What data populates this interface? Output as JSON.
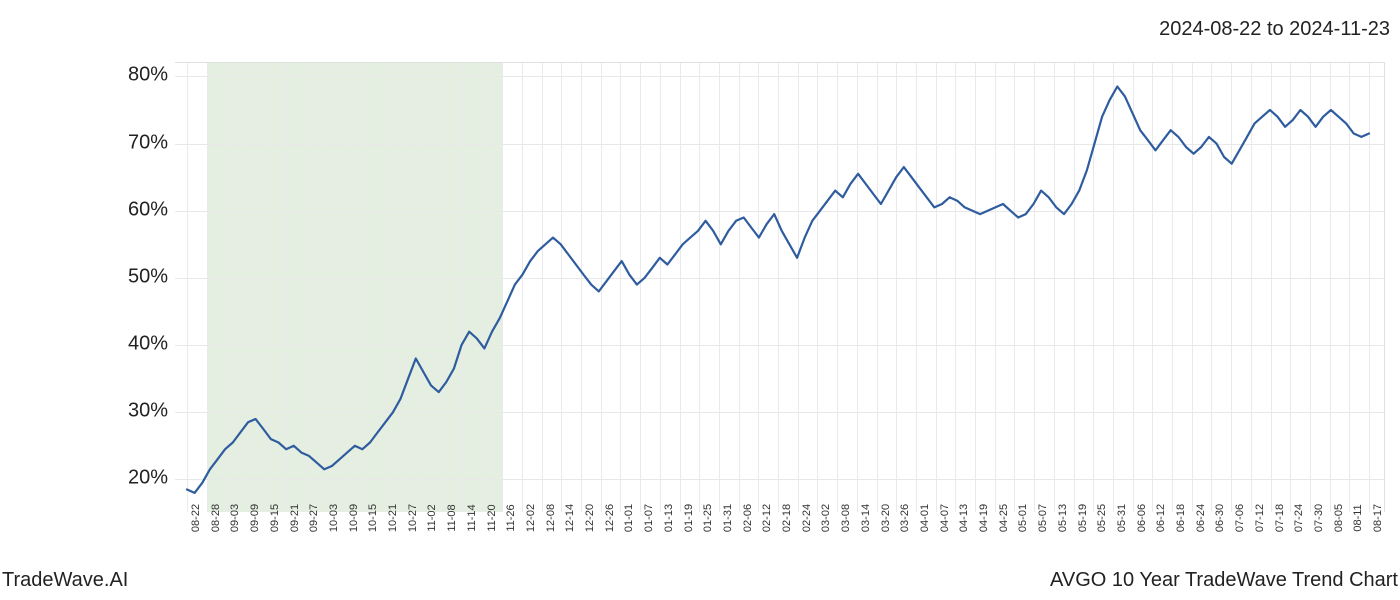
{
  "date_range_label": "2024-08-22 to 2024-11-23",
  "footer_left": "TradeWave.AI",
  "footer_right": "AVGO 10 Year TradeWave Trend Chart",
  "chart": {
    "type": "line",
    "background_color": "#ffffff",
    "grid_color": "#e8e8e8",
    "line_color": "#2e5c9e",
    "line_width": 2.2,
    "highlight_band": {
      "color": "rgba(180, 210, 170, 0.35)",
      "x_start_index": 1,
      "x_end_index": 16
    },
    "ylim": [
      15,
      82
    ],
    "y_ticks": [
      20,
      30,
      40,
      50,
      60,
      70,
      80
    ],
    "y_tick_labels": [
      "20%",
      "30%",
      "40%",
      "50%",
      "60%",
      "70%",
      "80%"
    ],
    "y_tick_fontsize": 20,
    "x_tick_labels": [
      "08-22",
      "08-28",
      "09-03",
      "09-09",
      "09-15",
      "09-21",
      "09-27",
      "10-03",
      "10-09",
      "10-15",
      "10-21",
      "10-27",
      "11-02",
      "11-08",
      "11-14",
      "11-20",
      "11-26",
      "12-02",
      "12-08",
      "12-14",
      "12-20",
      "12-26",
      "01-01",
      "01-07",
      "01-13",
      "01-19",
      "01-25",
      "01-31",
      "02-06",
      "02-12",
      "02-18",
      "02-24",
      "03-02",
      "03-08",
      "03-14",
      "03-20",
      "03-26",
      "04-01",
      "04-07",
      "04-13",
      "04-19",
      "04-25",
      "05-01",
      "05-07",
      "05-13",
      "05-19",
      "05-25",
      "05-31",
      "06-06",
      "06-12",
      "06-18",
      "06-24",
      "06-30",
      "07-06",
      "07-12",
      "07-18",
      "07-24",
      "07-30",
      "08-05",
      "08-11",
      "08-17"
    ],
    "x_tick_fontsize": 11,
    "series": [
      18.5,
      18.0,
      19.5,
      21.5,
      23.0,
      24.5,
      25.5,
      27.0,
      28.5,
      29.0,
      27.5,
      26.0,
      25.5,
      24.5,
      25.0,
      24.0,
      23.5,
      22.5,
      21.5,
      22.0,
      23.0,
      24.0,
      25.0,
      24.5,
      25.5,
      27.0,
      28.5,
      30.0,
      32.0,
      35.0,
      38.0,
      36.0,
      34.0,
      33.0,
      34.5,
      36.5,
      40.0,
      42.0,
      41.0,
      39.5,
      42.0,
      44.0,
      46.5,
      49.0,
      50.5,
      52.5,
      54.0,
      55.0,
      56.0,
      55.0,
      53.5,
      52.0,
      50.5,
      49.0,
      48.0,
      49.5,
      51.0,
      52.5,
      50.5,
      49.0,
      50.0,
      51.5,
      53.0,
      52.0,
      53.5,
      55.0,
      56.0,
      57.0,
      58.5,
      57.0,
      55.0,
      57.0,
      58.5,
      59.0,
      57.5,
      56.0,
      58.0,
      59.5,
      57.0,
      55.0,
      53.0,
      56.0,
      58.5,
      60.0,
      61.5,
      63.0,
      62.0,
      64.0,
      65.5,
      64.0,
      62.5,
      61.0,
      63.0,
      65.0,
      66.5,
      65.0,
      63.5,
      62.0,
      60.5,
      61.0,
      62.0,
      61.5,
      60.5,
      60.0,
      59.5,
      60.0,
      60.5,
      61.0,
      60.0,
      59.0,
      59.5,
      61.0,
      63.0,
      62.0,
      60.5,
      59.5,
      61.0,
      63.0,
      66.0,
      70.0,
      74.0,
      76.5,
      78.5,
      77.0,
      74.5,
      72.0,
      70.5,
      69.0,
      70.5,
      72.0,
      71.0,
      69.5,
      68.5,
      69.5,
      71.0,
      70.0,
      68.0,
      67.0,
      69.0,
      71.0,
      73.0,
      74.0,
      75.0,
      74.0,
      72.5,
      73.5,
      75.0,
      74.0,
      72.5,
      74.0,
      75.0,
      74.0,
      73.0,
      71.5,
      71.0,
      71.5
    ]
  }
}
